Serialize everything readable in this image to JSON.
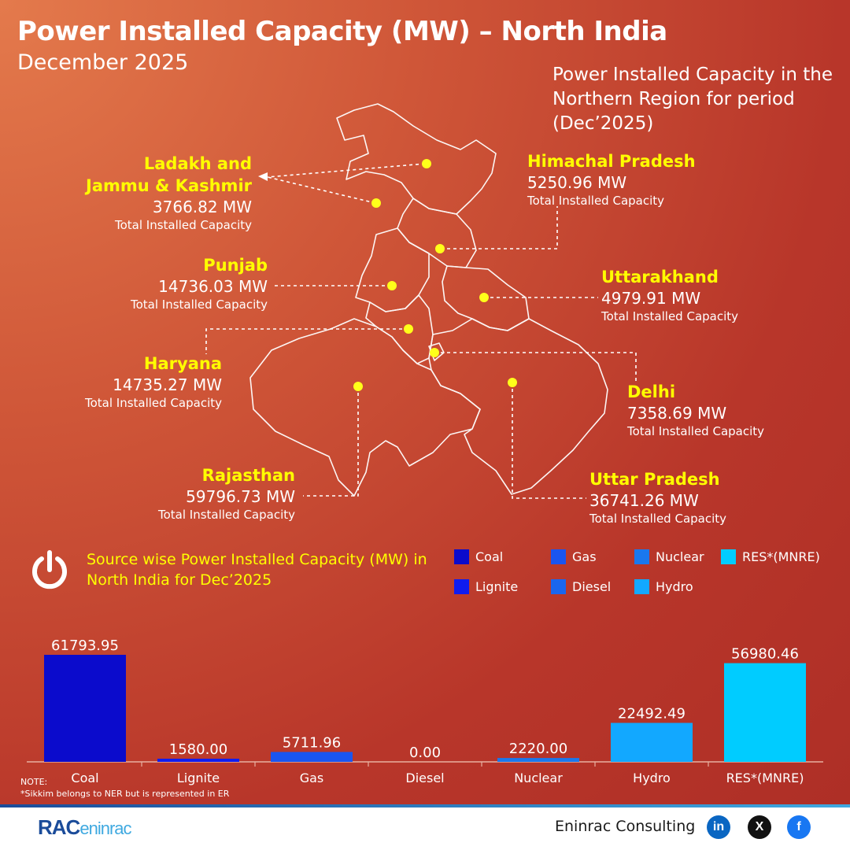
{
  "header": {
    "title": "Power Installed Capacity (MW) – North India",
    "subtitle": "December 2025",
    "map_description": "Power Installed Capacity in the Northern Region for period (Dec’2025)"
  },
  "states": [
    {
      "key": "jk",
      "name_line1": "Ladakh and",
      "name_line2": "Jammu & Kashmir",
      "value": "3766.82 MW",
      "caption": "Total Installed Capacity"
    },
    {
      "key": "hp",
      "name": "Himachal Pradesh",
      "value": "5250.96 MW",
      "caption": "Total Installed Capacity"
    },
    {
      "key": "pb",
      "name": "Punjab",
      "value": "14736.03 MW",
      "caption": "Total Installed Capacity"
    },
    {
      "key": "uk",
      "name": "Uttarakhand",
      "value": "4979.91 MW",
      "caption": "Total Installed Capacity"
    },
    {
      "key": "hr",
      "name": "Haryana",
      "value": "14735.27 MW",
      "caption": "Total Installed Capacity"
    },
    {
      "key": "dl",
      "name": "Delhi",
      "value": "7358.69 MW",
      "caption": "Total Installed Capacity"
    },
    {
      "key": "rj",
      "name": "Rajasthan",
      "value": "59796.73 MW",
      "caption": "Total Installed Capacity"
    },
    {
      "key": "up",
      "name": "Uttar Pradesh",
      "value": "36741.26 MW",
      "caption": "Total Installed Capacity"
    }
  ],
  "source_section": {
    "title": "Source wise Power Installed Capacity (MW) in North India for Dec’2025",
    "icon": "power-icon"
  },
  "legend": [
    {
      "label": "Coal",
      "color": "#0b0bcc"
    },
    {
      "label": "Gas",
      "color": "#1a55f0"
    },
    {
      "label": "Nuclear",
      "color": "#1a78ee"
    },
    {
      "label": "RES*(MNRE)",
      "color": "#00ccff"
    },
    {
      "label": "Lignite",
      "color": "#0f1cf0"
    },
    {
      "label": "Diesel",
      "color": "#1a66ee"
    },
    {
      "label": "Hydro",
      "color": "#12a8ff"
    }
  ],
  "chart_data": {
    "type": "bar",
    "title": "Source wise Power Installed Capacity (MW) in North India for Dec’2025",
    "xlabel": "",
    "ylabel": "",
    "categories": [
      "Coal",
      "Lignite",
      "Gas",
      "Diesel",
      "Nuclear",
      "Hydro",
      "RES*(MNRE)"
    ],
    "values": [
      61793.95,
      1580.0,
      5711.96,
      0.0,
      2220.0,
      22492.49,
      56980.46
    ],
    "value_labels": [
      "61793.95",
      "1580.00",
      "5711.96",
      "0.00",
      "2220.00",
      "22492.49",
      "56980.46"
    ],
    "colors": [
      "#0b0bcc",
      "#0f1cf0",
      "#1a55f0",
      "#1a66ee",
      "#1a78ee",
      "#12a8ff",
      "#00ccff"
    ],
    "ylim": [
      0,
      61793.95
    ],
    "grid": false,
    "legend_placement": "top-right"
  },
  "notes": {
    "label": "NOTE:",
    "text": "*Sikkim belongs to NER but is represented in ER"
  },
  "footer": {
    "brand": "Eninrac Consulting",
    "logo_text_main": "RAC",
    "logo_text_accent": "eninrac",
    "social": [
      {
        "icon": "linkedin-icon",
        "glyph": "in",
        "color": "#0a66c2"
      },
      {
        "icon": "x-icon",
        "glyph": "X",
        "color": "#111111"
      },
      {
        "icon": "facebook-icon",
        "glyph": "f",
        "color": "#1877f2"
      }
    ]
  }
}
